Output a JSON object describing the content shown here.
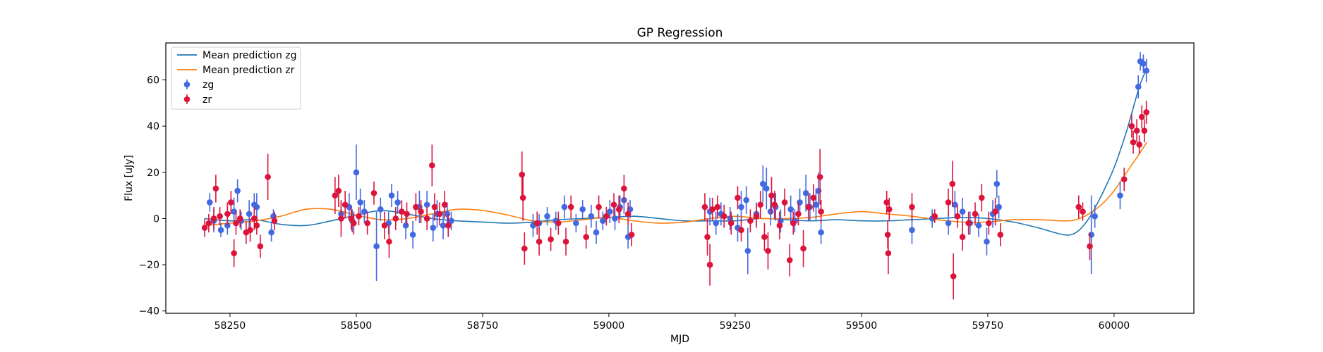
{
  "chart_data": {
    "type": "scatter",
    "title": "GP Regression",
    "xlabel": "MJD",
    "ylabel": "Flux [uJy]",
    "xlim": [
      58123,
      60158
    ],
    "ylim": [
      -41,
      76
    ],
    "xticks": [
      58250,
      58500,
      58750,
      59000,
      59250,
      59500,
      59750,
      60000
    ],
    "yticks": [
      -40,
      -20,
      0,
      20,
      40,
      60
    ],
    "grid": false,
    "legend_position": "top-left",
    "colors": {
      "zg": "#4169e1",
      "zr": "#dc143c",
      "mean_zg": "#1f77b4",
      "mean_zr": "#ff7f0e"
    },
    "lines": [
      {
        "name": "Mean prediction zg",
        "color": "#1f77b4",
        "x": [
          58200,
          58250,
          58300,
          58350,
          58400,
          58450,
          58500,
          58550,
          58600,
          58650,
          58700,
          58750,
          58800,
          58850,
          58900,
          58950,
          59000,
          59050,
          59100,
          59150,
          59200,
          59250,
          59300,
          59350,
          59400,
          59450,
          59500,
          59550,
          59600,
          59650,
          59700,
          59750,
          59800,
          59850,
          59900,
          59925,
          59950,
          59975,
          60000,
          60025,
          60050,
          60065
        ],
        "y": [
          0,
          -1,
          -0.5,
          -2.5,
          -3,
          -1,
          1.5,
          3.5,
          2,
          0,
          -1,
          -1.5,
          -2,
          -1.5,
          -0.5,
          0,
          0.5,
          1,
          0,
          -1,
          -1,
          -1,
          0,
          -0.5,
          -1,
          -0.5,
          -1,
          -1,
          -0.5,
          0,
          0.5,
          0,
          -1.5,
          -4,
          -7,
          -6,
          0,
          10,
          22,
          38,
          57,
          65
        ]
      },
      {
        "name": "Mean prediction zr",
        "color": "#ff7f0e",
        "x": [
          58200,
          58250,
          58300,
          58350,
          58400,
          58450,
          58500,
          58550,
          58600,
          58650,
          58700,
          58750,
          58800,
          58850,
          58900,
          58950,
          59000,
          59050,
          59100,
          59150,
          59200,
          59250,
          59300,
          59350,
          59400,
          59450,
          59500,
          59550,
          59600,
          59650,
          59700,
          59750,
          59800,
          59850,
          59900,
          59925,
          59950,
          59975,
          60000,
          60025,
          60050,
          60065
        ],
        "y": [
          -3,
          -2,
          -1,
          1,
          4,
          4,
          1.5,
          -0.5,
          0,
          2,
          4,
          3.5,
          1.5,
          -1,
          -1.5,
          -0.5,
          0.5,
          -1,
          -2,
          -1.5,
          0,
          1,
          0,
          0,
          0.5,
          2,
          3,
          2,
          1,
          -0.5,
          -1.5,
          -1.5,
          -0.5,
          -0.5,
          -1,
          -0.5,
          2,
          6,
          12,
          20,
          28,
          33
        ]
      }
    ],
    "series": [
      {
        "name": "zg",
        "color": "#4169e1",
        "points": [
          [
            58210,
            7,
            4
          ],
          [
            58218,
            -1,
            5
          ],
          [
            58232,
            -5,
            3
          ],
          [
            58245,
            -3,
            4
          ],
          [
            58258,
            3,
            6
          ],
          [
            58265,
            12,
            5
          ],
          [
            58272,
            -1,
            4
          ],
          [
            58288,
            2,
            6
          ],
          [
            58298,
            6,
            5
          ],
          [
            58303,
            5,
            6
          ],
          [
            58332,
            -6,
            4
          ],
          [
            58336,
            1,
            3
          ],
          [
            58470,
            2,
            5
          ],
          [
            58486,
            5,
            6
          ],
          [
            58492,
            -1,
            5
          ],
          [
            58500,
            20,
            12
          ],
          [
            58508,
            7,
            6
          ],
          [
            58516,
            3,
            5
          ],
          [
            58540,
            -12,
            15
          ],
          [
            58548,
            4,
            5
          ],
          [
            58564,
            -2,
            5
          ],
          [
            58570,
            10,
            5
          ],
          [
            58582,
            7,
            5
          ],
          [
            58598,
            -3,
            6
          ],
          [
            58612,
            -7,
            6
          ],
          [
            58625,
            5,
            7
          ],
          [
            58640,
            6,
            6
          ],
          [
            58652,
            -4,
            6
          ],
          [
            58660,
            2,
            6
          ],
          [
            58672,
            -3,
            6
          ],
          [
            58680,
            2,
            5
          ],
          [
            58688,
            -1,
            4
          ],
          [
            58850,
            -3,
            5
          ],
          [
            58862,
            -2,
            4
          ],
          [
            58878,
            1,
            4
          ],
          [
            58895,
            -1,
            4
          ],
          [
            58912,
            5,
            5
          ],
          [
            58935,
            -2,
            4
          ],
          [
            58948,
            4,
            4
          ],
          [
            58965,
            1,
            5
          ],
          [
            58975,
            -6,
            5
          ],
          [
            58988,
            -1,
            4
          ],
          [
            59002,
            3,
            5
          ],
          [
            59012,
            0,
            5
          ],
          [
            59022,
            5,
            5
          ],
          [
            59030,
            8,
            6
          ],
          [
            59038,
            -8,
            5
          ],
          [
            59042,
            4,
            4
          ],
          [
            59200,
            3,
            6
          ],
          [
            59212,
            -2,
            5
          ],
          [
            59222,
            2,
            5
          ],
          [
            59240,
            0,
            5
          ],
          [
            59255,
            -4,
            6
          ],
          [
            59262,
            5,
            7
          ],
          [
            59272,
            8,
            6
          ],
          [
            59275,
            -14,
            10
          ],
          [
            59292,
            2,
            5
          ],
          [
            59305,
            15,
            8
          ],
          [
            59312,
            13,
            9
          ],
          [
            59320,
            3,
            6
          ],
          [
            59330,
            5,
            6
          ],
          [
            59340,
            -1,
            5
          ],
          [
            59360,
            4,
            6
          ],
          [
            59368,
            -1,
            5
          ],
          [
            59378,
            7,
            6
          ],
          [
            59390,
            11,
            8
          ],
          [
            59398,
            5,
            6
          ],
          [
            59410,
            6,
            7
          ],
          [
            59415,
            12,
            8
          ],
          [
            59420,
            -6,
            5
          ],
          [
            59600,
            -5,
            6
          ],
          [
            59640,
            0,
            4
          ],
          [
            59672,
            -2,
            5
          ],
          [
            59685,
            6,
            6
          ],
          [
            59700,
            3,
            6
          ],
          [
            59715,
            -2,
            5
          ],
          [
            59732,
            -3,
            5
          ],
          [
            59748,
            -10,
            6
          ],
          [
            59760,
            2,
            6
          ],
          [
            59768,
            15,
            6
          ],
          [
            59772,
            5,
            5
          ],
          [
            59955,
            -7,
            17
          ],
          [
            59962,
            1,
            5
          ],
          [
            60012,
            10,
            6
          ],
          [
            60048,
            57,
            5
          ],
          [
            60052,
            68,
            4
          ],
          [
            60058,
            67,
            4
          ],
          [
            60064,
            64,
            5
          ]
        ]
      },
      {
        "name": "zr",
        "color": "#dc143c",
        "points": [
          [
            58200,
            -4,
            4
          ],
          [
            58208,
            -2,
            4
          ],
          [
            58218,
            0,
            5
          ],
          [
            58222,
            13,
            6
          ],
          [
            58230,
            1,
            4
          ],
          [
            58245,
            2,
            5
          ],
          [
            58252,
            7,
            5
          ],
          [
            58258,
            -15,
            6
          ],
          [
            58262,
            -2,
            5
          ],
          [
            58270,
            0,
            4
          ],
          [
            58282,
            -6,
            5
          ],
          [
            58290,
            -5,
            5
          ],
          [
            58298,
            0,
            5
          ],
          [
            58303,
            -3,
            4
          ],
          [
            58310,
            -12,
            5
          ],
          [
            58325,
            18,
            10
          ],
          [
            58338,
            -1,
            4
          ],
          [
            58458,
            10,
            8
          ],
          [
            58465,
            12,
            7
          ],
          [
            58470,
            0,
            8
          ],
          [
            58478,
            6,
            6
          ],
          [
            58490,
            0,
            5
          ],
          [
            58495,
            -2,
            5
          ],
          [
            58505,
            1,
            4
          ],
          [
            58522,
            -2,
            5
          ],
          [
            58535,
            11,
            5
          ],
          [
            58556,
            -3,
            6
          ],
          [
            58565,
            -10,
            7
          ],
          [
            58578,
            0,
            5
          ],
          [
            58590,
            3,
            5
          ],
          [
            58600,
            2,
            5
          ],
          [
            58618,
            5,
            6
          ],
          [
            58628,
            3,
            5
          ],
          [
            58640,
            0,
            5
          ],
          [
            58650,
            23,
            9
          ],
          [
            58655,
            5,
            6
          ],
          [
            58665,
            2,
            5
          ],
          [
            58675,
            6,
            6
          ],
          [
            58682,
            -3,
            5
          ],
          [
            58828,
            19,
            10
          ],
          [
            58830,
            9,
            10
          ],
          [
            58833,
            -13,
            7
          ],
          [
            58858,
            -2,
            5
          ],
          [
            58862,
            -10,
            6
          ],
          [
            58885,
            -9,
            5
          ],
          [
            58900,
            -2,
            5
          ],
          [
            58915,
            -10,
            6
          ],
          [
            58925,
            5,
            5
          ],
          [
            58955,
            -8,
            5
          ],
          [
            58980,
            5,
            5
          ],
          [
            58995,
            1,
            4
          ],
          [
            59010,
            6,
            5
          ],
          [
            59020,
            4,
            6
          ],
          [
            59030,
            13,
            6
          ],
          [
            59038,
            2,
            5
          ],
          [
            59045,
            -7,
            5
          ],
          [
            59190,
            5,
            6
          ],
          [
            59195,
            -8,
            8
          ],
          [
            59200,
            -20,
            9
          ],
          [
            59205,
            4,
            5
          ],
          [
            59215,
            5,
            5
          ],
          [
            59228,
            1,
            5
          ],
          [
            59242,
            -2,
            5
          ],
          [
            59255,
            9,
            5
          ],
          [
            59262,
            -5,
            5
          ],
          [
            59280,
            -1,
            5
          ],
          [
            59292,
            1,
            5
          ],
          [
            59300,
            6,
            6
          ],
          [
            59308,
            -8,
            6
          ],
          [
            59315,
            -14,
            8
          ],
          [
            59322,
            10,
            8
          ],
          [
            59328,
            6,
            6
          ],
          [
            59338,
            -3,
            6
          ],
          [
            59348,
            7,
            6
          ],
          [
            59358,
            -18,
            7
          ],
          [
            59365,
            -2,
            5
          ],
          [
            59375,
            2,
            5
          ],
          [
            59385,
            -13,
            8
          ],
          [
            59395,
            5,
            6
          ],
          [
            59405,
            9,
            6
          ],
          [
            59418,
            18,
            12
          ],
          [
            59420,
            3,
            5
          ],
          [
            59550,
            7,
            5
          ],
          [
            59552,
            -7,
            6
          ],
          [
            59553,
            -15,
            9
          ],
          [
            59555,
            4,
            5
          ],
          [
            59600,
            5,
            6
          ],
          [
            59645,
            1,
            3
          ],
          [
            59672,
            7,
            6
          ],
          [
            59680,
            15,
            10
          ],
          [
            59682,
            -25,
            10
          ],
          [
            59690,
            1,
            5
          ],
          [
            59700,
            -8,
            6
          ],
          [
            59712,
            -2,
            5
          ],
          [
            59725,
            2,
            5
          ],
          [
            59738,
            9,
            6
          ],
          [
            59752,
            -2,
            5
          ],
          [
            59765,
            3,
            6
          ],
          [
            59775,
            -7,
            5
          ],
          [
            59930,
            5,
            5
          ],
          [
            59938,
            3,
            4
          ],
          [
            59952,
            -12,
            6
          ],
          [
            60020,
            17,
            5
          ],
          [
            60035,
            40,
            5
          ],
          [
            60038,
            33,
            5
          ],
          [
            60045,
            38,
            5
          ],
          [
            60050,
            32,
            4
          ],
          [
            60055,
            44,
            5
          ],
          [
            60060,
            38,
            5
          ],
          [
            60064,
            46,
            5
          ]
        ]
      }
    ]
  }
}
